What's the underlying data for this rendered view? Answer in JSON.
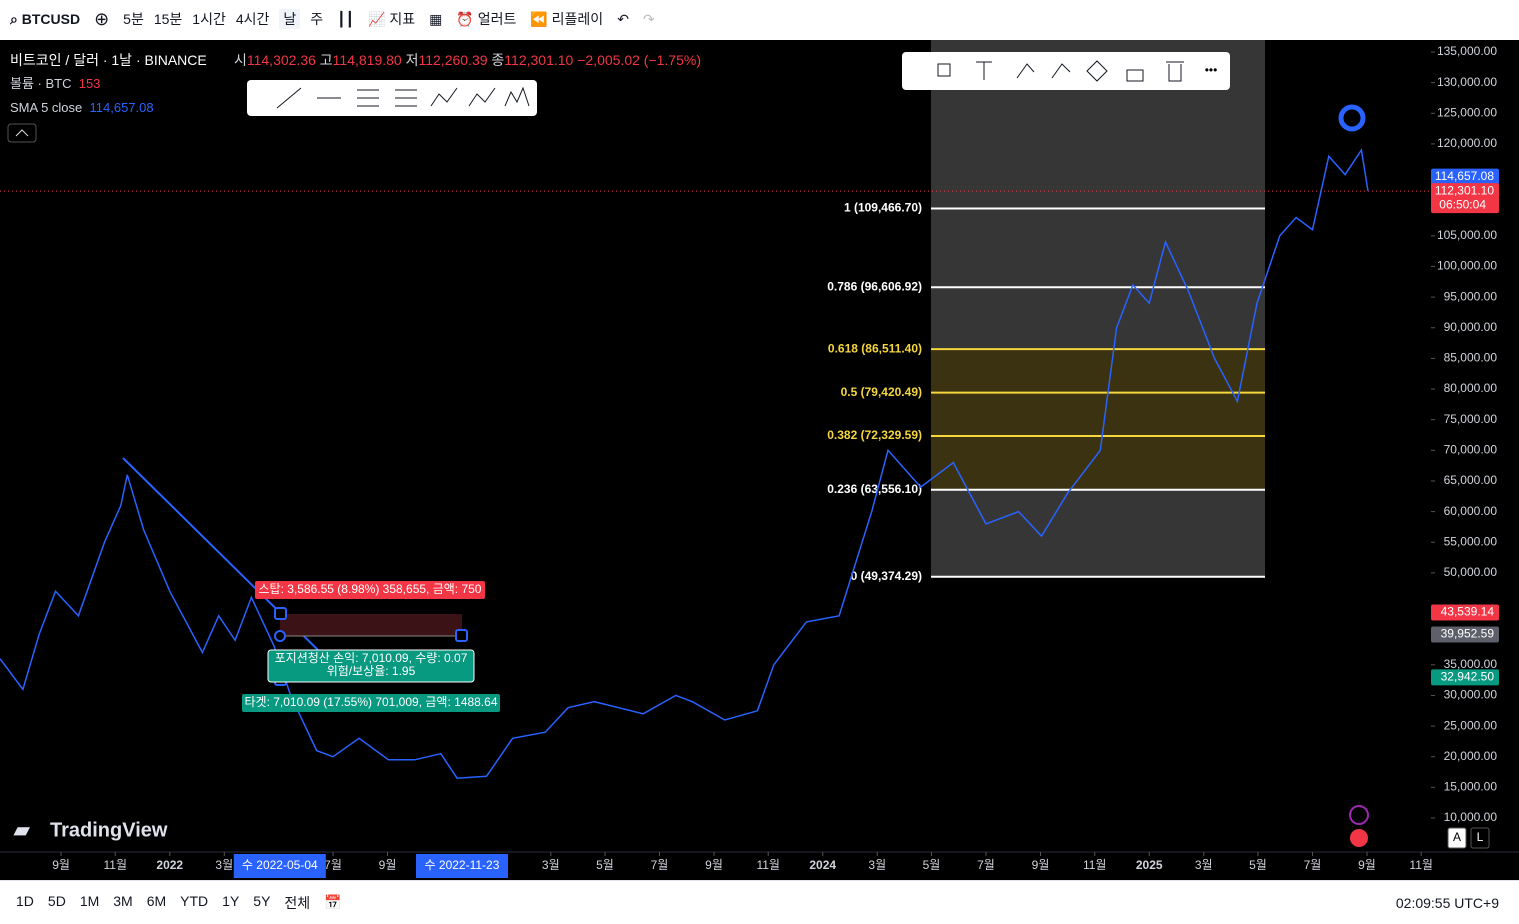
{
  "toolbar": {
    "symbol": "BTCUSD",
    "intervals": [
      "5분",
      "15분",
      "1시간",
      "4시간",
      "날",
      "주"
    ],
    "indicators": "지표",
    "alert": "얼러트",
    "replay": "리플레이"
  },
  "legend": {
    "title": "비트코인 / 달러 · 1날 · BINANCE",
    "open_label": "시",
    "open": "114,302.36",
    "high_label": "고",
    "high": "114,819.80",
    "low_label": "저",
    "low": "112,260.39",
    "close_label": "종",
    "close": "112,301.10",
    "change": "−2,005.02 (−1.75%)",
    "volume_label": "볼륨 · BTC",
    "volume": "153",
    "sma_label": "SMA 5 close",
    "sma": "114,657.08"
  },
  "chart_data": {
    "type": "line",
    "color": "#2962ff",
    "x": [
      2021.48,
      2021.55,
      2021.6,
      2021.65,
      2021.72,
      2021.8,
      2021.85,
      2021.87,
      2021.92,
      2022.0,
      2022.05,
      2022.1,
      2022.15,
      2022.2,
      2022.25,
      2022.32,
      2022.37,
      2022.45,
      2022.5,
      2022.58,
      2022.67,
      2022.75,
      2022.83,
      2022.88,
      2022.97,
      2023.05,
      2023.15,
      2023.22,
      2023.3,
      2023.45,
      2023.55,
      2023.6,
      2023.7,
      2023.8,
      2023.85,
      2023.95,
      2024.05,
      2024.15,
      2024.2,
      2024.3,
      2024.4,
      2024.5,
      2024.6,
      2024.67,
      2024.75,
      2024.85,
      2024.9,
      2024.95,
      2025.0,
      2025.05,
      2025.12,
      2025.2,
      2025.27,
      2025.33,
      2025.4,
      2025.45,
      2025.5,
      2025.55,
      2025.6,
      2025.65,
      2025.67
    ],
    "values": [
      36000,
      31000,
      40000,
      47000,
      43000,
      55000,
      61000,
      66000,
      57000,
      47000,
      42000,
      37000,
      43000,
      39000,
      46000,
      38000,
      30000,
      21000,
      20000,
      23000,
      19500,
      19500,
      20500,
      16500,
      16800,
      23000,
      24000,
      28000,
      29000,
      27000,
      30000,
      29000,
      26000,
      27500,
      35000,
      42000,
      43000,
      60000,
      70000,
      64000,
      68000,
      58000,
      60000,
      56000,
      63000,
      70000,
      90000,
      97000,
      94000,
      104000,
      96000,
      85000,
      78000,
      94000,
      105000,
      108000,
      106000,
      118000,
      115000,
      119000,
      112301.1
    ],
    "xlim": [
      2021.48,
      2025.86
    ],
    "ylim": [
      10000,
      135000
    ],
    "yticks": [
      {
        "value": 135000,
        "label": "135,000.00"
      },
      {
        "value": 130000,
        "label": "130,000.00"
      },
      {
        "value": 125000,
        "label": "125,000.00"
      },
      {
        "value": 120000,
        "label": "120,000.00"
      },
      {
        "value": 105000,
        "label": "105,000.00"
      },
      {
        "value": 100000,
        "label": "100,000.00"
      },
      {
        "value": 95000,
        "label": "95,000.00"
      },
      {
        "value": 90000,
        "label": "90,000.00"
      },
      {
        "value": 85000,
        "label": "85,000.00"
      },
      {
        "value": 80000,
        "label": "80,000.00"
      },
      {
        "value": 75000,
        "label": "75,000.00"
      },
      {
        "value": 70000,
        "label": "70,000.00"
      },
      {
        "value": 65000,
        "label": "65,000.00"
      },
      {
        "value": 60000,
        "label": "60,000.00"
      },
      {
        "value": 55000,
        "label": "55,000.00"
      },
      {
        "value": 50000,
        "label": "50,000.00"
      },
      {
        "value": 35000,
        "label": "35,000.00"
      },
      {
        "value": 30000,
        "label": "30,000.00"
      },
      {
        "value": 25000,
        "label": "25,000.00"
      },
      {
        "value": 20000,
        "label": "20,000.00"
      },
      {
        "value": 15000,
        "label": "15,000.00"
      },
      {
        "value": 10000,
        "label": "10,000.00"
      }
    ],
    "xticks": [
      {
        "value": 2021.667,
        "label": "9월"
      },
      {
        "value": 2021.833,
        "label": "11월"
      },
      2022,
      {
        "value": 2022.167,
        "label": "3월"
      },
      {
        "value": 2022.5,
        "label": "7월"
      },
      {
        "value": 2022.667,
        "label": "9월"
      },
      {
        "value": 2023.167,
        "label": "3월"
      },
      {
        "value": 2023.333,
        "label": "5월"
      },
      {
        "value": 2023.5,
        "label": "7월"
      },
      {
        "value": 2023.667,
        "label": "9월"
      },
      {
        "value": 2023.833,
        "label": "11월"
      },
      2024,
      {
        "value": 2024.167,
        "label": "3월"
      },
      {
        "value": 2024.333,
        "label": "5월"
      },
      {
        "value": 2024.5,
        "label": "7월"
      },
      {
        "value": 2024.667,
        "label": "9월"
      },
      {
        "value": 2024.833,
        "label": "11월"
      },
      2025,
      {
        "value": 2025.167,
        "label": "3월"
      },
      {
        "value": 2025.333,
        "label": "5월"
      },
      {
        "value": 2025.5,
        "label": "7월"
      },
      {
        "value": 2025.667,
        "label": "9월"
      },
      {
        "value": 2025.833,
        "label": "11월"
      }
    ],
    "x_markers": [
      {
        "value": 2022.337,
        "label": "수 2022-05-04"
      },
      {
        "value": 2022.895,
        "label": "수 2022-11-23"
      }
    ],
    "fib_levels": [
      {
        "label": "1 (109,466.70)",
        "value": 109466.7,
        "color": "#ffffff"
      },
      {
        "label": "0.786 (96,606.92)",
        "value": 96606.92,
        "color": "#ffffff"
      },
      {
        "label": "0.618 (86,511.40)",
        "value": 86511.4,
        "color": "#f5d63d"
      },
      {
        "label": "0.5 (79,420.49)",
        "value": 79420.49,
        "color": "#f5d63d"
      },
      {
        "label": "0.382 (72,329.59)",
        "value": 72329.59,
        "color": "#f5d63d"
      },
      {
        "label": "0.236 (63,556.10)",
        "value": 63556.1,
        "color": "#ffffff"
      },
      {
        "label": "0 (49,374.29)",
        "value": 49374.29,
        "color": "#ffffff"
      }
    ],
    "price_labels": [
      {
        "label": "114,657.08",
        "value": 114657.08,
        "color": "#2962ff"
      },
      {
        "label": "112,301.10",
        "value": 112301.1,
        "color": "#f23645"
      },
      {
        "label": "43,539.14",
        "value": 43539.14,
        "color": "#f23645"
      },
      {
        "label": "39,952.59",
        "value": 39952.59,
        "color": "#5d606b"
      },
      {
        "label": "32,942.50",
        "value": 32942.5,
        "color": "#089981"
      }
    ],
    "countdown": "06:50:04",
    "position": {
      "stop": "스탑: 3,586.55 (8.98%) 358,655, 금액: 750",
      "pnl": "포지션청산 손익: 7,010.09, 수량: 0.07",
      "ratio": "위험/보상율: 1.95",
      "target": "타겟: 7,010.09 (17.55%) 701,009, 금액: 1488.64"
    },
    "watermark": "TradingView",
    "scale_buttons": [
      "A",
      "L"
    ]
  },
  "footer": {
    "ranges": [
      "1D",
      "5D",
      "1M",
      "3M",
      "6M",
      "YTD",
      "1Y",
      "5Y",
      "전체"
    ],
    "clock": "02:09:55 UTC+9"
  }
}
